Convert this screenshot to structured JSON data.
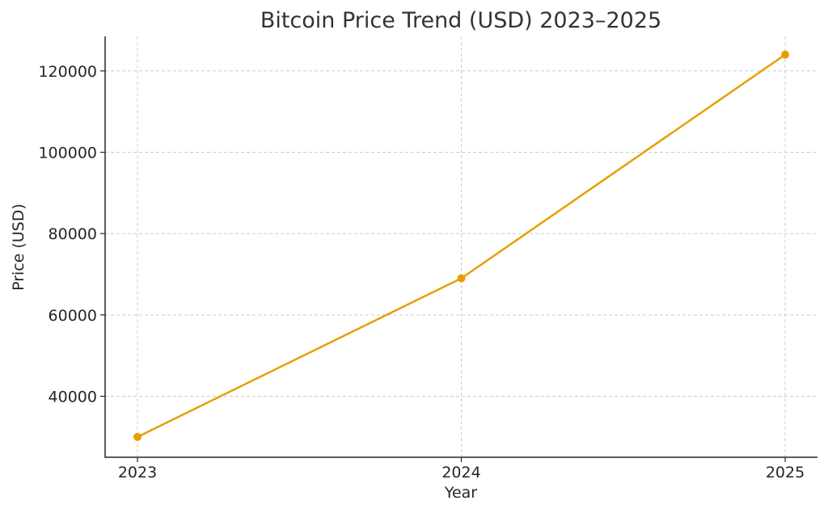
{
  "chart_data": {
    "type": "line",
    "title": "Bitcoin Price Trend (USD) 2023–2025",
    "xlabel": "Year",
    "ylabel": "Price (USD)",
    "categories": [
      "2023",
      "2024",
      "2025"
    ],
    "series": [
      {
        "values": [
          30000,
          69000,
          124000
        ],
        "color": "#e69f00"
      }
    ],
    "yticks": [
      40000,
      60000,
      80000,
      100000,
      120000
    ],
    "ylim": [
      25000,
      128500
    ],
    "grid": true,
    "markers": true
  }
}
